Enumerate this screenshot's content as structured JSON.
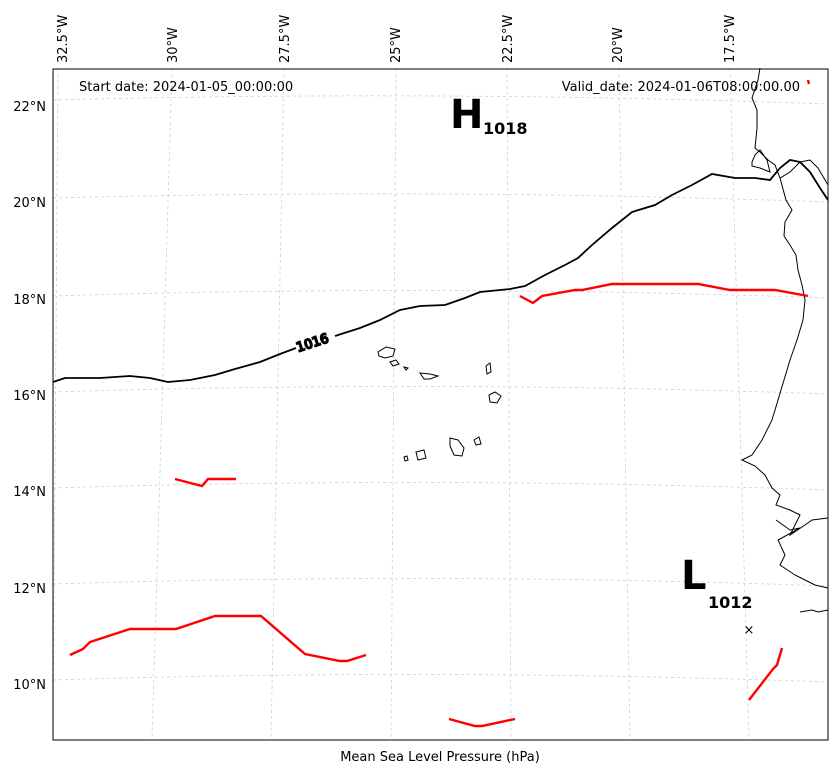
{
  "header": {
    "start_date": "Start date: 2024-01-05_00:00:00",
    "valid_date": "Valid_date: 2024-01-06T08:00:00.00"
  },
  "caption": "Mean Sea Level Pressure (hPa)",
  "axes": {
    "lon_ticks": [
      "32.5°W",
      "30°W",
      "27.5°W",
      "25°W",
      "22.5°W",
      "20°W",
      "17.5°W"
    ],
    "lat_ticks": [
      "22°N",
      "20°N",
      "18°N",
      "16°N",
      "14°N",
      "12°N",
      "10°N"
    ],
    "gridlines": true
  },
  "pressure_centers": [
    {
      "type": "high",
      "letter": "H",
      "value": "1018"
    },
    {
      "type": "low",
      "letter": "L",
      "value": "1012"
    }
  ],
  "contour": {
    "value": "1016",
    "color": "#000000"
  },
  "front_color": "#ff0000",
  "marker": {
    "symbol": "×"
  },
  "colors": {
    "coastline": "#000000",
    "grid": "#cccccc",
    "front": "#ff0000"
  }
}
